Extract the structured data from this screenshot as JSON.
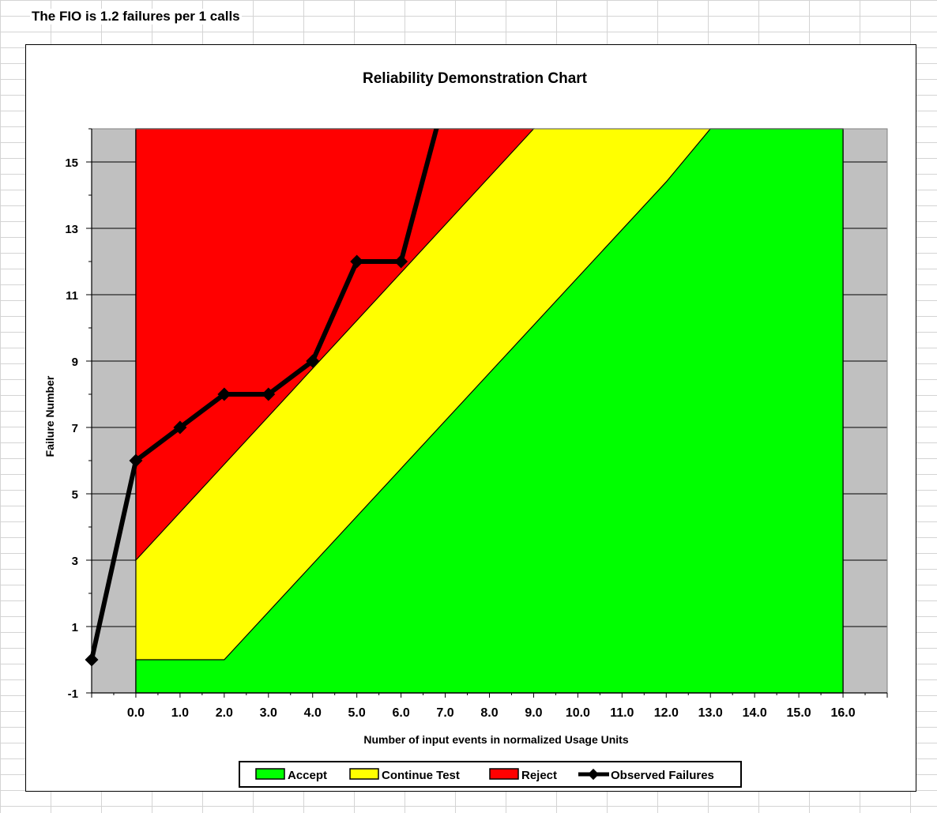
{
  "sheet": {
    "heading": "The FIO is 1.2 failures per 1 calls"
  },
  "colors": {
    "accept": "#00ff00",
    "continue": "#ffff00",
    "reject": "#ff0000",
    "observed": "#000000",
    "outside": "#c0c0c0"
  },
  "chart_data": {
    "type": "area",
    "title": "Reliability Demonstration Chart",
    "xlabel": "Number of input events in normalized Usage Units",
    "ylabel": "Failure Number",
    "xlim": [
      -1,
      17
    ],
    "ylim": [
      -1,
      16
    ],
    "x_ticks": [
      "0.0",
      "1.0",
      "2.0",
      "3.0",
      "4.0",
      "5.0",
      "6.0",
      "7.0",
      "8.0",
      "9.0",
      "10.0",
      "11.0",
      "12.0",
      "13.0",
      "14.0",
      "15.0",
      "16.0"
    ],
    "y_ticks": [
      -1,
      1,
      3,
      5,
      7,
      9,
      11,
      13,
      15
    ],
    "grid": "horizontal",
    "legend_position": "bottom",
    "regions": {
      "reject_boundary": [
        [
          0,
          3
        ],
        [
          9,
          16
        ]
      ],
      "accept_boundary": [
        [
          0,
          0
        ],
        [
          2,
          0
        ],
        [
          12,
          14.4
        ],
        [
          13,
          16
        ]
      ]
    },
    "series": [
      {
        "name": "Accept",
        "kind": "area"
      },
      {
        "name": "Continue Test",
        "kind": "area"
      },
      {
        "name": "Reject",
        "kind": "area"
      },
      {
        "name": "Observed Failures",
        "kind": "line",
        "x": [
          -1,
          0,
          1,
          2,
          3,
          4,
          5,
          6,
          7
        ],
        "y": [
          0,
          6,
          7,
          8,
          8,
          9,
          12,
          12,
          17
        ]
      }
    ]
  }
}
